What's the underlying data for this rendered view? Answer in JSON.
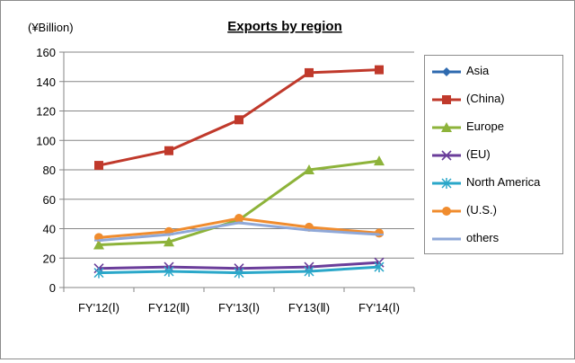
{
  "chart_data": {
    "type": "line",
    "title": "Exports by region",
    "ylabel": "(¥Billion)",
    "xlabel": "",
    "categories": [
      "FY'12(Ⅰ)",
      "FY12(Ⅱ)",
      "FY'13(Ⅰ)",
      "FY13(Ⅱ)",
      "FY'14(Ⅰ)"
    ],
    "ylim": [
      0,
      160
    ],
    "yticks": [
      0,
      20,
      40,
      60,
      80,
      100,
      120,
      140,
      160
    ],
    "grid": true,
    "legend_position": "right",
    "series": [
      {
        "name": "Asia",
        "color": "#2e6aaf",
        "marker": "diamond",
        "values": [
          null,
          null,
          null,
          null,
          null
        ]
      },
      {
        "name": "(China)",
        "color": "#c0392b",
        "marker": "square",
        "values": [
          83,
          93,
          114,
          146,
          148
        ]
      },
      {
        "name": "Europe",
        "color": "#8db33a",
        "marker": "triangle",
        "values": [
          29,
          31,
          46,
          80,
          86
        ]
      },
      {
        "name": "(EU)",
        "color": "#6a3d9a",
        "marker": "x",
        "values": [
          13,
          14,
          13,
          14,
          17
        ]
      },
      {
        "name": "North America",
        "color": "#2aa7c9",
        "marker": "star",
        "values": [
          10,
          11,
          10,
          11,
          14
        ]
      },
      {
        "name": "(U.S.)",
        "color": "#f08c2e",
        "marker": "circle",
        "values": [
          34,
          38,
          47,
          41,
          37
        ]
      },
      {
        "name": "others",
        "color": "#8fa8d8",
        "marker": "dash",
        "values": [
          32,
          36,
          44,
          39,
          36
        ]
      }
    ]
  }
}
